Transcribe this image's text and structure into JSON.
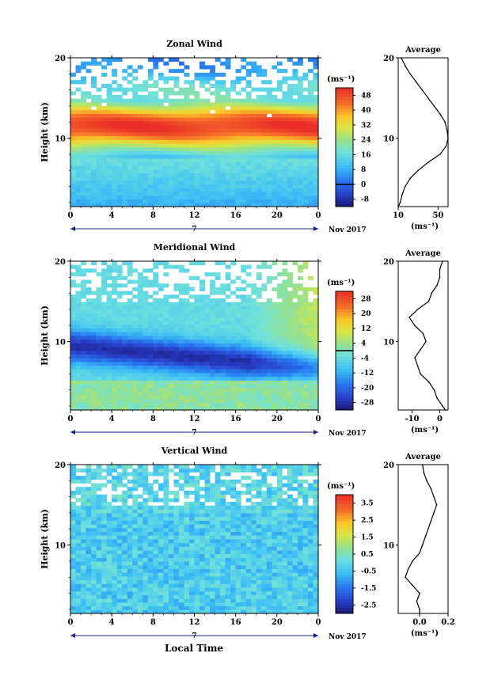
{
  "figure": {
    "xlabel": "Local Time",
    "date_label": "Nov 2017",
    "day_label": "7",
    "avg_title": "Average"
  },
  "chart_data": [
    {
      "type": "heatmap",
      "title": "Zonal Wind",
      "xlabel": "Local Time",
      "ylabel": "Height (km)",
      "x_ticks": [
        "0",
        "4",
        "8",
        "12",
        "16",
        "20",
        "0"
      ],
      "xlim": [
        0,
        24
      ],
      "ylim": [
        1.5,
        20
      ],
      "y_ticks": [
        10,
        20
      ],
      "colorbar": {
        "unit": "(ms⁻¹)",
        "ticks": [
          -8,
          0,
          8,
          16,
          24,
          32,
          40,
          48
        ],
        "min": -12,
        "max": 52,
        "contour_level": 0
      },
      "profile": {
        "title": "Average",
        "xlabel": "(ms⁻¹)",
        "x_ticks": [
          10,
          50
        ],
        "xlim": [
          10,
          60
        ],
        "heights": [
          1.5,
          2,
          3,
          4,
          5,
          6,
          7,
          8,
          9,
          10,
          11,
          12,
          13,
          14,
          15,
          16,
          17,
          18,
          19,
          20
        ],
        "values": [
          10,
          12,
          14,
          17,
          22,
          30,
          40,
          52,
          58,
          60,
          59,
          57,
          52,
          46,
          40,
          34,
          28,
          22,
          17,
          13
        ]
      }
    },
    {
      "type": "heatmap",
      "title": "Meridional Wind",
      "xlabel": "Local Time",
      "ylabel": "Height (km)",
      "x_ticks": [
        "0",
        "4",
        "8",
        "12",
        "16",
        "20",
        "0"
      ],
      "xlim": [
        0,
        24
      ],
      "ylim": [
        1.5,
        20
      ],
      "y_ticks": [
        10,
        20
      ],
      "colorbar": {
        "unit": "(ms⁻¹)",
        "ticks": [
          -28,
          -20,
          -12,
          -4,
          4,
          12,
          20,
          28
        ],
        "min": -32,
        "max": 32,
        "contour_level": 0
      },
      "profile": {
        "title": "Average",
        "xlabel": "(ms⁻¹)",
        "x_ticks": [
          -10,
          0
        ],
        "xlim": [
          -15,
          3
        ],
        "heights": [
          1.5,
          2,
          3,
          4,
          5,
          6,
          7,
          8,
          9,
          10,
          11,
          12,
          13,
          14,
          15,
          16,
          17,
          18,
          19,
          20
        ],
        "values": [
          2,
          1,
          -1,
          -2,
          -4,
          -7,
          -8,
          -9,
          -7,
          -5,
          -6,
          -9,
          -11,
          -8,
          -4,
          -3,
          -1,
          0,
          0,
          1
        ]
      }
    },
    {
      "type": "heatmap",
      "title": "Vertical Wind",
      "xlabel": "Local Time",
      "ylabel": "Height (km)",
      "x_ticks": [
        "0",
        "4",
        "8",
        "12",
        "16",
        "20",
        "0"
      ],
      "xlim": [
        0,
        24
      ],
      "ylim": [
        1.5,
        20
      ],
      "y_ticks": [
        10,
        20
      ],
      "colorbar": {
        "unit": "(ms⁻¹)",
        "ticks": [
          -2.5,
          -1.5,
          -0.5,
          0.5,
          1.5,
          2.5,
          3.5
        ],
        "min": -3.0,
        "max": 4.0,
        "contour_level": null
      },
      "profile": {
        "title": "Average",
        "xlabel": "(ms⁻¹)",
        "x_ticks": [
          0.0,
          0.2
        ],
        "x_tick_labels": [
          "0.0",
          "0.2"
        ],
        "xlim": [
          -0.15,
          0.2
        ],
        "heights": [
          1.5,
          2,
          3,
          4,
          5,
          6,
          7,
          8,
          9,
          10,
          11,
          12,
          13,
          14,
          15,
          16,
          17,
          18,
          19,
          20
        ],
        "values": [
          0.0,
          0.0,
          -0.02,
          0.0,
          -0.05,
          -0.1,
          -0.08,
          -0.05,
          0.0,
          0.02,
          0.04,
          0.06,
          0.08,
          0.1,
          0.12,
          0.1,
          0.08,
          0.05,
          0.03,
          0.02
        ]
      }
    }
  ]
}
